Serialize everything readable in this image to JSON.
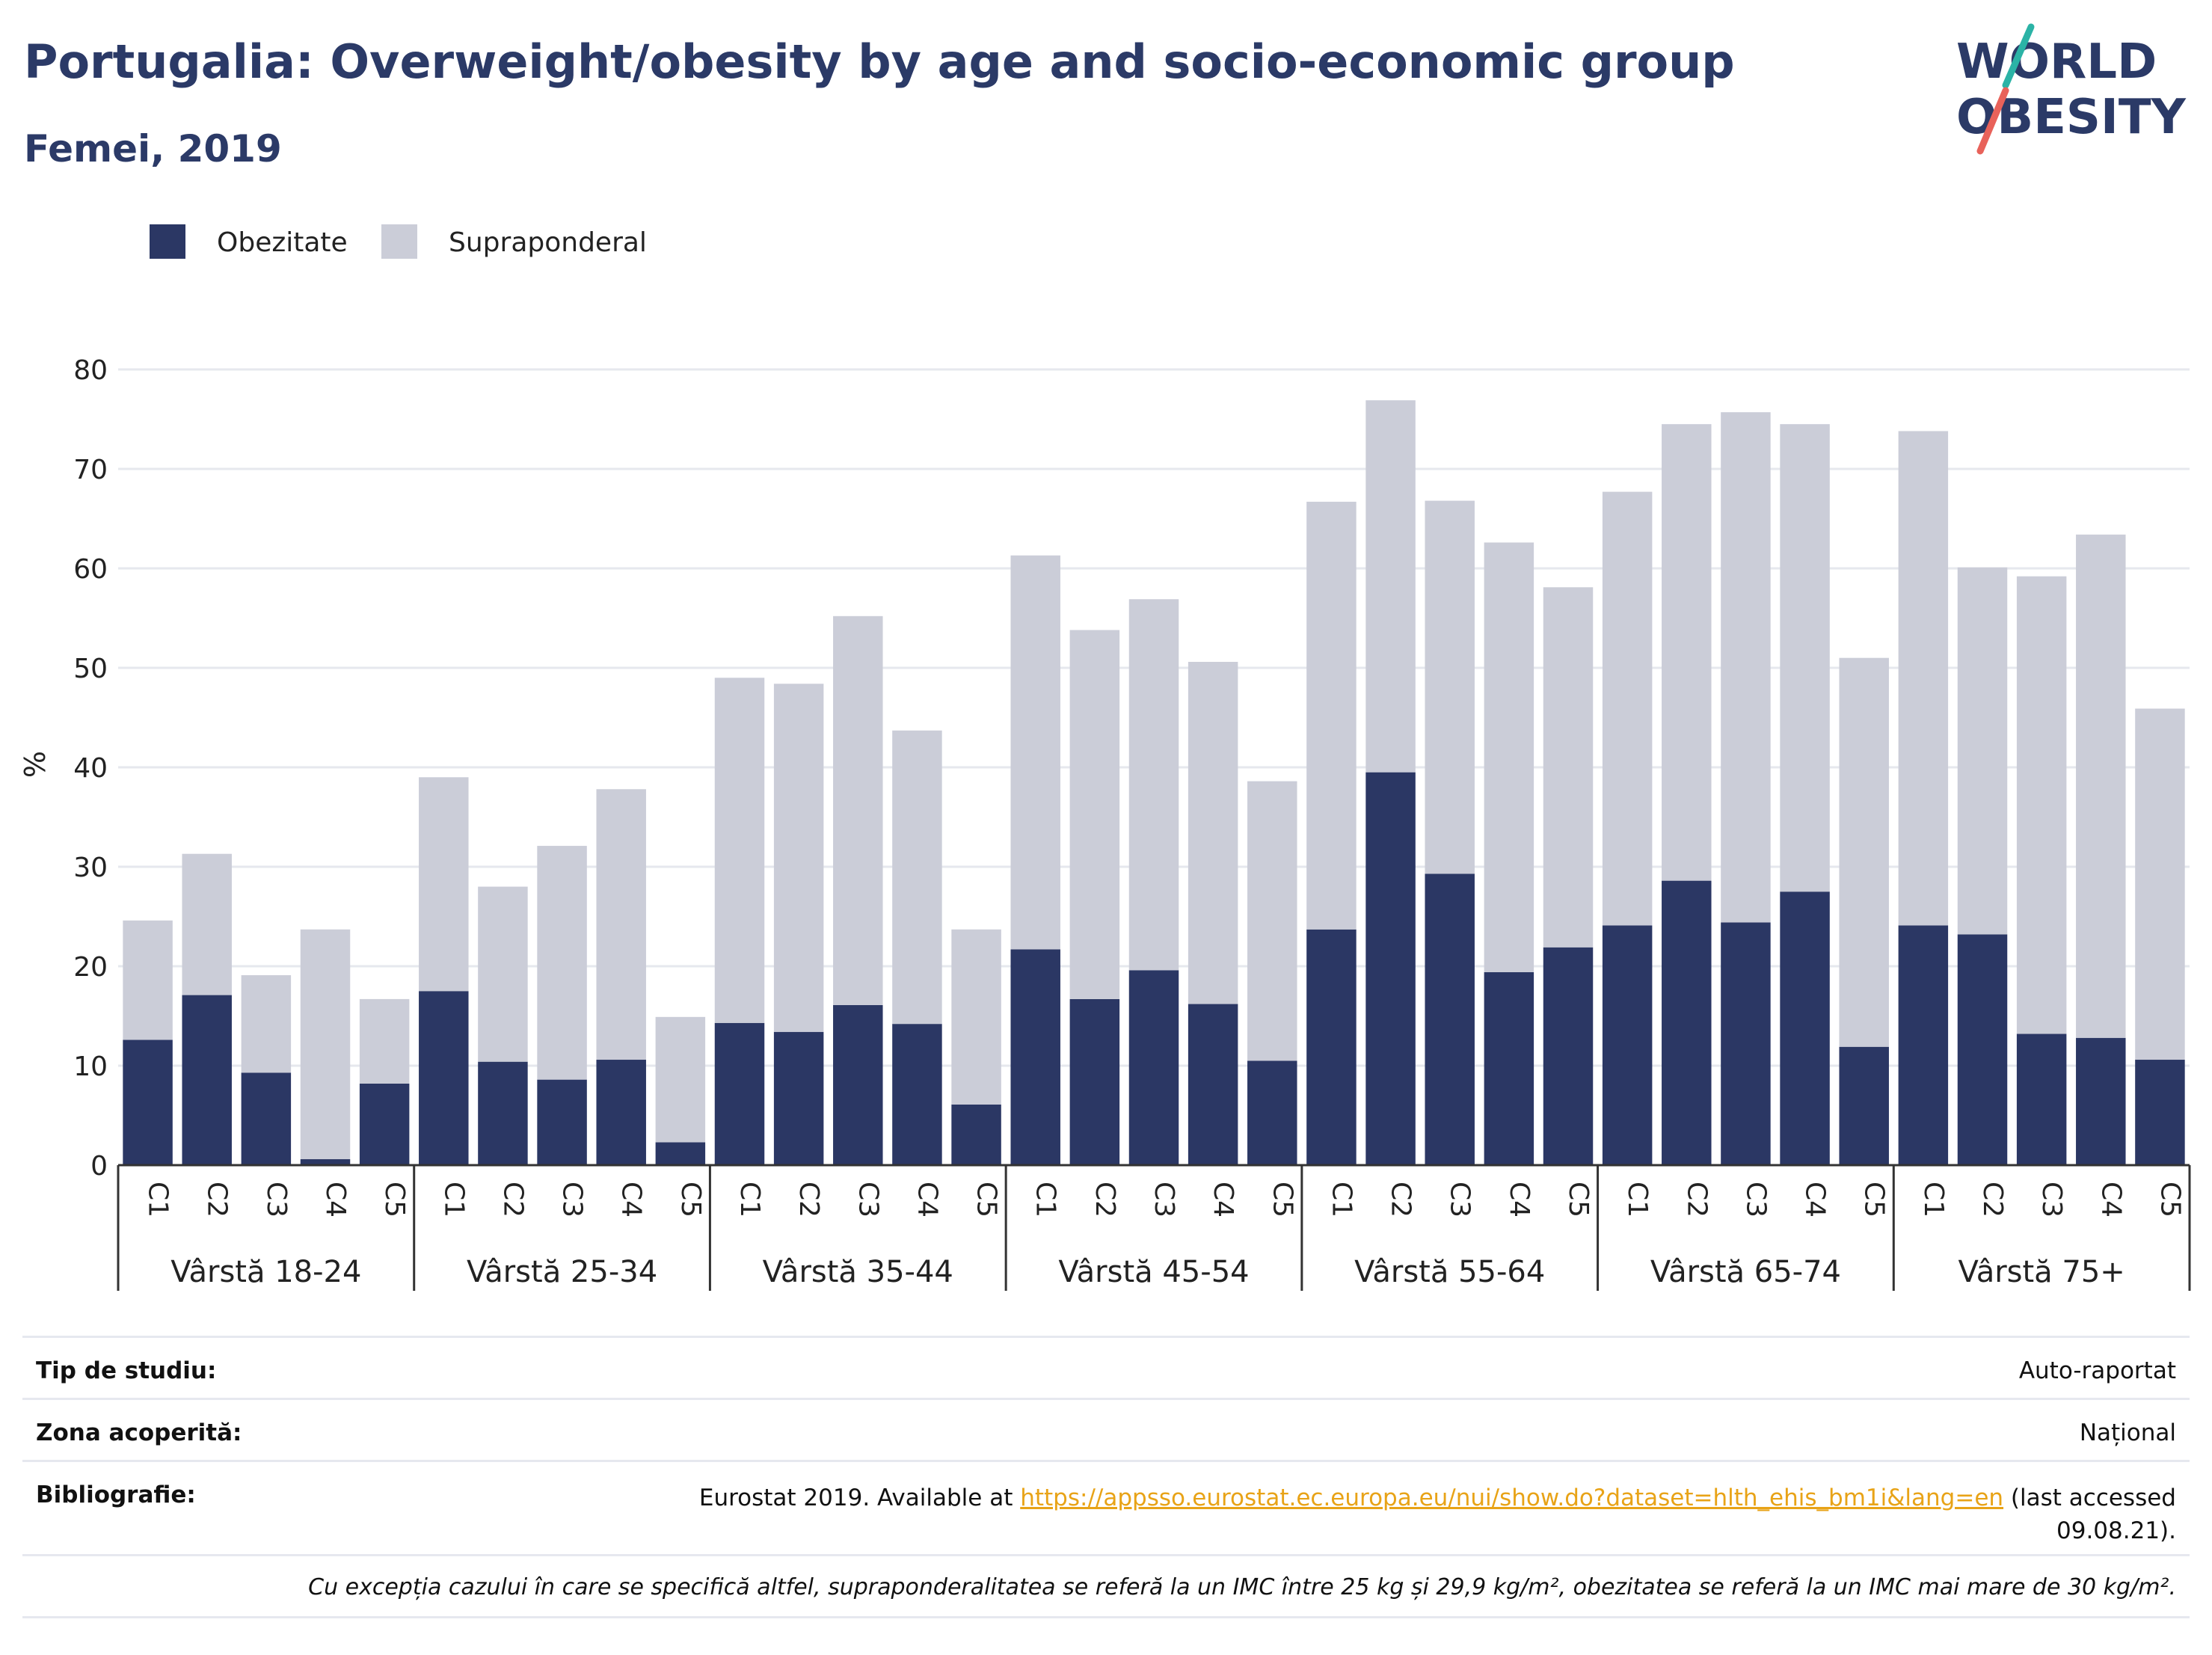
{
  "header": {
    "title": "Portugalia: Overweight/obesity by age and socio-economic group",
    "subtitle": "Femei, 2019"
  },
  "logo": {
    "line1": "WORLD",
    "line2": "OBESITY",
    "accent_colors": [
      "#2bb3a6",
      "#e8625a"
    ]
  },
  "colors": {
    "obesity": "#2b3764",
    "overweight": "#cbcdd8",
    "title": "#2b3a67"
  },
  "chart_data": {
    "type": "bar",
    "stacked": true,
    "ylabel": "%",
    "ylim": [
      0,
      80
    ],
    "yticks": [
      0,
      10,
      20,
      30,
      40,
      50,
      60,
      70,
      80
    ],
    "legend": {
      "position": "top-left",
      "entries": [
        "Obezitate",
        "Supraponderal"
      ]
    },
    "groups": [
      "Vârstă 18-24",
      "Vârstă 25-34",
      "Vârstă 35-44",
      "Vârstă 45-54",
      "Vârstă 55-64",
      "Vârstă 65-74",
      "Vârstă 75+"
    ],
    "categories": [
      "C1",
      "C2",
      "C3",
      "C4",
      "C5"
    ],
    "series": [
      {
        "name": "Obezitate",
        "values": [
          [
            12.6,
            17.1,
            9.3,
            0.6,
            8.2
          ],
          [
            17.5,
            10.4,
            8.6,
            10.6,
            2.3
          ],
          [
            14.3,
            13.4,
            16.1,
            14.2,
            6.1
          ],
          [
            21.7,
            16.7,
            19.6,
            16.2,
            10.5
          ],
          [
            23.7,
            39.5,
            29.3,
            19.4,
            21.9
          ],
          [
            24.1,
            28.6,
            24.4,
            27.5,
            11.9
          ],
          [
            24.1,
            23.2,
            13.2,
            12.8,
            10.6
          ]
        ]
      },
      {
        "name": "Supraponderal",
        "values": [
          [
            12.0,
            14.2,
            9.8,
            23.1,
            8.5
          ],
          [
            21.5,
            17.6,
            23.5,
            27.2,
            12.6
          ],
          [
            34.7,
            35.0,
            39.1,
            29.5,
            17.6
          ],
          [
            39.6,
            37.1,
            37.3,
            34.4,
            28.1
          ],
          [
            43.0,
            37.4,
            37.5,
            43.2,
            36.2
          ],
          [
            43.6,
            45.9,
            51.3,
            47.0,
            39.1
          ],
          [
            49.7,
            36.9,
            46.0,
            50.6,
            35.3
          ]
        ]
      }
    ]
  },
  "meta": {
    "study_type_label": "Tip de studiu:",
    "study_type_value": "Auto-raportat",
    "coverage_label": "Zona acoperită:",
    "coverage_value": "Național",
    "bibliography_label": "Bibliografie:",
    "bibliography_prefix": "Eurostat 2019. Available at ",
    "bibliography_link": "https://appsso.eurostat.ec.europa.eu/nui/show.do?dataset=hlth_ehis_bm1i&lang=en",
    "bibliography_suffix": " (last accessed",
    "bibliography_date": "09.08.21).",
    "note": "Cu excepția cazului în care se specifică altfel, supraponderalitatea se referă la un IMC între 25 kg și 29,9 kg/m², obezitatea se referă la un IMC mai mare de 30 kg/m²."
  }
}
